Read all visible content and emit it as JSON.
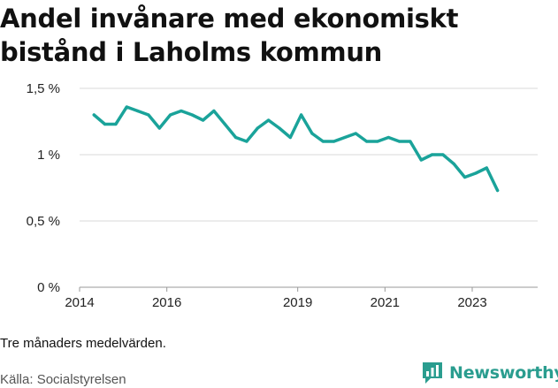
{
  "header": {
    "title_line1": "Andel invånare med ekonomiskt",
    "title_line2": "bistånd i Laholms kommun"
  },
  "footer": {
    "note": "Tre månaders medelvärden.",
    "source": "Källa: Socialstyrelsen",
    "brand": "Newsworthy",
    "brand_icon": "bar-chart-speech-bubble-icon"
  },
  "colors": {
    "line": "#1aa39a",
    "grid": "#d9d9d9",
    "brand": "#2a9d8f"
  },
  "chart_data": {
    "type": "line",
    "title": "Andel invånare med ekonomiskt bistånd i Laholms kommun",
    "xlabel": "",
    "ylabel": "",
    "ylim": [
      0,
      1.5
    ],
    "xlim": [
      2014.0,
      2024.5
    ],
    "y_ticks": [
      0,
      0.5,
      1,
      1.5
    ],
    "y_tick_labels": [
      "0 %",
      "0,5 %",
      "1 %",
      "1,5 %"
    ],
    "x_ticks": [
      2014,
      2016,
      2019,
      2021,
      2023
    ],
    "x_tick_labels": [
      "2014",
      "2016",
      "2019",
      "2021",
      "2023"
    ],
    "grid": true,
    "series": [
      {
        "x": [
          2014.33,
          2014.58,
          2014.83,
          2015.08,
          2015.33,
          2015.58,
          2015.83,
          2016.08,
          2016.33,
          2016.58,
          2016.83,
          2017.08,
          2017.33,
          2017.58,
          2017.83,
          2018.08,
          2018.33,
          2018.58,
          2018.83,
          2019.08,
          2019.33,
          2019.58,
          2019.83,
          2020.08,
          2020.33,
          2020.58,
          2020.83,
          2021.08,
          2021.33,
          2021.58,
          2021.83,
          2022.08,
          2022.33,
          2022.58,
          2022.83,
          2023.08,
          2023.33,
          2023.58
        ],
        "values": [
          1.3,
          1.23,
          1.23,
          1.36,
          1.33,
          1.3,
          1.2,
          1.3,
          1.33,
          1.3,
          1.26,
          1.33,
          1.23,
          1.13,
          1.1,
          1.2,
          1.26,
          1.2,
          1.13,
          1.3,
          1.16,
          1.1,
          1.1,
          1.13,
          1.16,
          1.1,
          1.1,
          1.13,
          1.1,
          1.1,
          0.96,
          1.0,
          1.0,
          0.93,
          0.83,
          0.86,
          0.9,
          0.73
        ]
      }
    ]
  }
}
